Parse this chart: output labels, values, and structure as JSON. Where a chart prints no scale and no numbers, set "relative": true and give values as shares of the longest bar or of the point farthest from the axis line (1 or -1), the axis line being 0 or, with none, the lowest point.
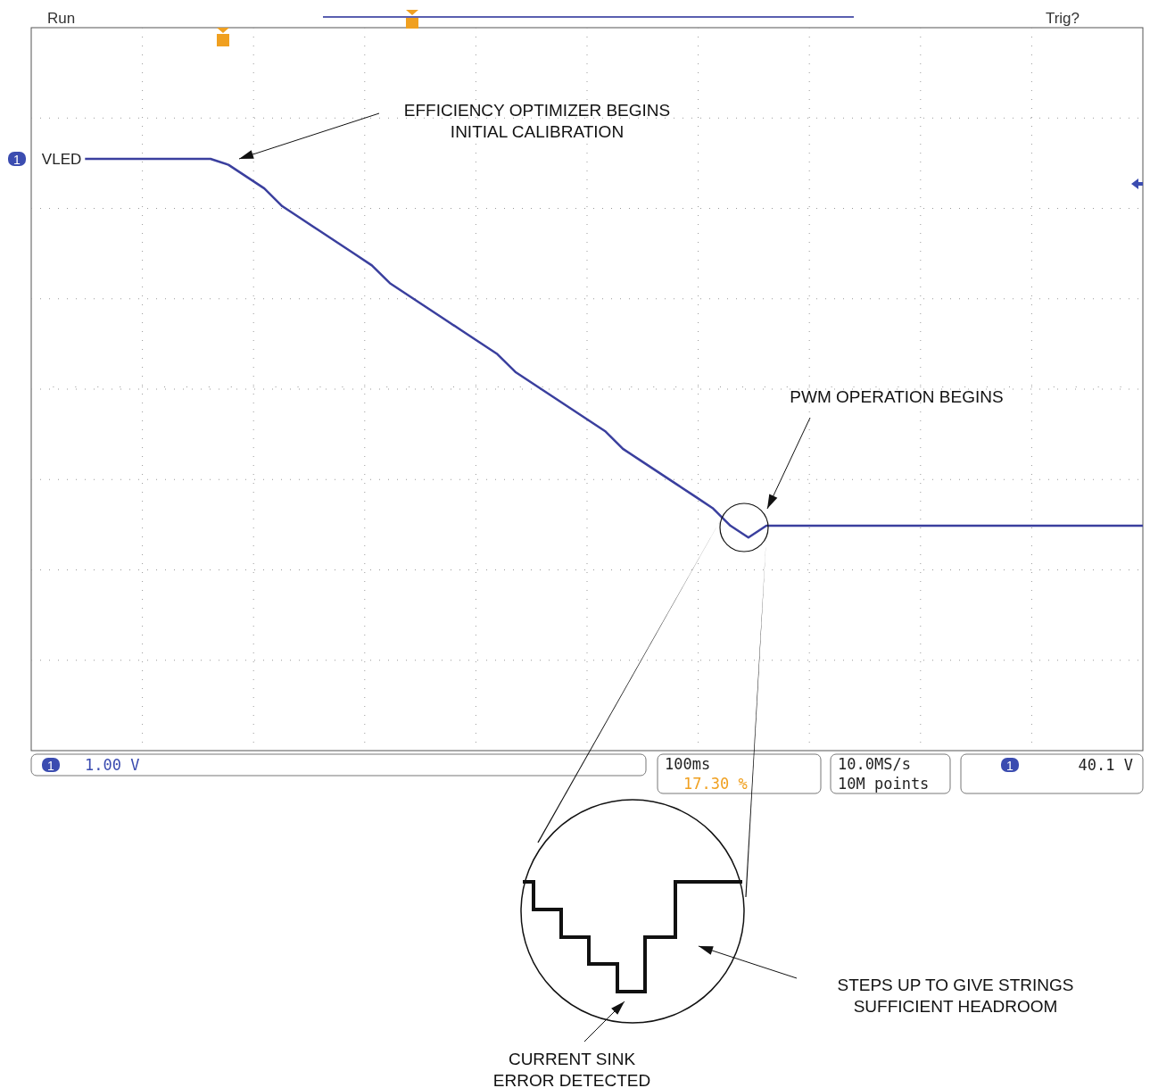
{
  "chart_data": {
    "type": "line",
    "relative": true,
    "grid": true,
    "marker": "none",
    "line_style": "solid",
    "categories": [
      null,
      null,
      null,
      null,
      null,
      null,
      null,
      null,
      null,
      null,
      null,
      null,
      null,
      null,
      null,
      null,
      null,
      null,
      null,
      null,
      null,
      null,
      null,
      null,
      null,
      null,
      null,
      null,
      null,
      null,
      null,
      null,
      null,
      null,
      null,
      null,
      null,
      null,
      null,
      null,
      null,
      null,
      null,
      null,
      null,
      null,
      null,
      null,
      null,
      null,
      null,
      null,
      null,
      null,
      null,
      null,
      null,
      null,
      null,
      null,
      null,
      null,
      null
    ],
    "series": [
      {
        "name": "VLED",
        "color": "#3a3f9e",
        "values": [
          null,
          null,
          null,
          1,
          1,
          1,
          1,
          1,
          1,
          1,
          1,
          0.99,
          0.97,
          0.95,
          0.92,
          0.9,
          0.88,
          0.86,
          0.84,
          0.82,
          0.79,
          0.77,
          0.75,
          0.73,
          0.71,
          0.69,
          0.67,
          0.64,
          0.62,
          0.6,
          0.58,
          0.56,
          0.54,
          0.51,
          0.49,
          0.47,
          0.45,
          0.43,
          0.41,
          0.38,
          0.36,
          0.38,
          0.38,
          0.38,
          0.38,
          0.38,
          0.38,
          0.38,
          0.38,
          0.38,
          0.38,
          0.38,
          0.38,
          0.38,
          0.38,
          0.38,
          0.38,
          0.38,
          0.38,
          0.38,
          0.38,
          0.38,
          0.38
        ]
      }
    ],
    "annotations": [
      "Run",
      "Trig?",
      "EFFICIENCY OPTIMIZER BEGINS\nINITIAL CALIBRATION",
      "PWM OPERATION BEGINS",
      "1.00 V",
      "100ms",
      "17.30 %",
      "10.0MS/s",
      "10M points",
      "40.1 V",
      "STEPS UP TO GIVE STRINGS\nSUFFICIENT HEADROOM",
      "CURRENT SINK\nERROR DETECTED",
      "1",
      "1",
      "1"
    ]
  }
}
